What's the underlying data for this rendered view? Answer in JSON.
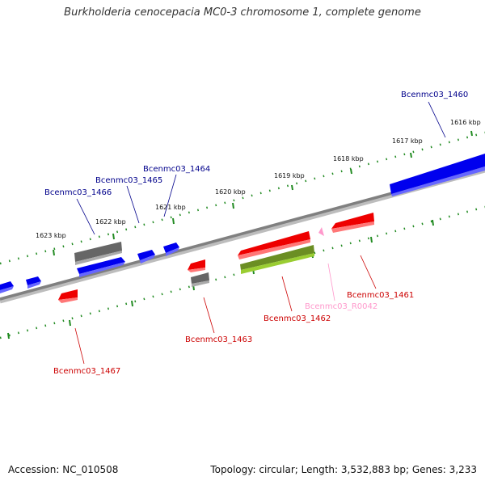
{
  "title": "Burkholderia cenocepacia MC0-3 chromosome 1, complete genome",
  "accession_text": "Accession: NC_010508",
  "summary_text": "Topology: circular; Length: 3,532,883 bp; Genes: 3,233",
  "colors": {
    "forward_gene": "#0000ee",
    "reverse_gene": "#ee0000",
    "pseudo_gene": "#666666",
    "rrna_gene": "#6b8e23",
    "ncrna_gene": "#ff99cc",
    "backbone": "#808080",
    "tick": "#228b22"
  },
  "ticks": [
    "1616 kbp",
    "1617 kbp",
    "1618 kbp",
    "1619 kbp",
    "1620 kbp",
    "1621 kbp",
    "1622 kbp",
    "1623 kbp"
  ],
  "genes": [
    {
      "label": "Bcenmc03_1460",
      "strand": "forward"
    },
    {
      "label": "Bcenmc03_1461",
      "strand": "reverse"
    },
    {
      "label": "Bcenmc03_R0042",
      "strand": "reverse"
    },
    {
      "label": "Bcenmc03_1462",
      "strand": "reverse"
    },
    {
      "label": "Bcenmc03_1463",
      "strand": "reverse"
    },
    {
      "label": "Bcenmc03_1464",
      "strand": "forward"
    },
    {
      "label": "Bcenmc03_1465",
      "strand": "forward"
    },
    {
      "label": "Bcenmc03_1466",
      "strand": "forward"
    },
    {
      "label": "Bcenmc03_1467",
      "strand": "reverse"
    }
  ]
}
